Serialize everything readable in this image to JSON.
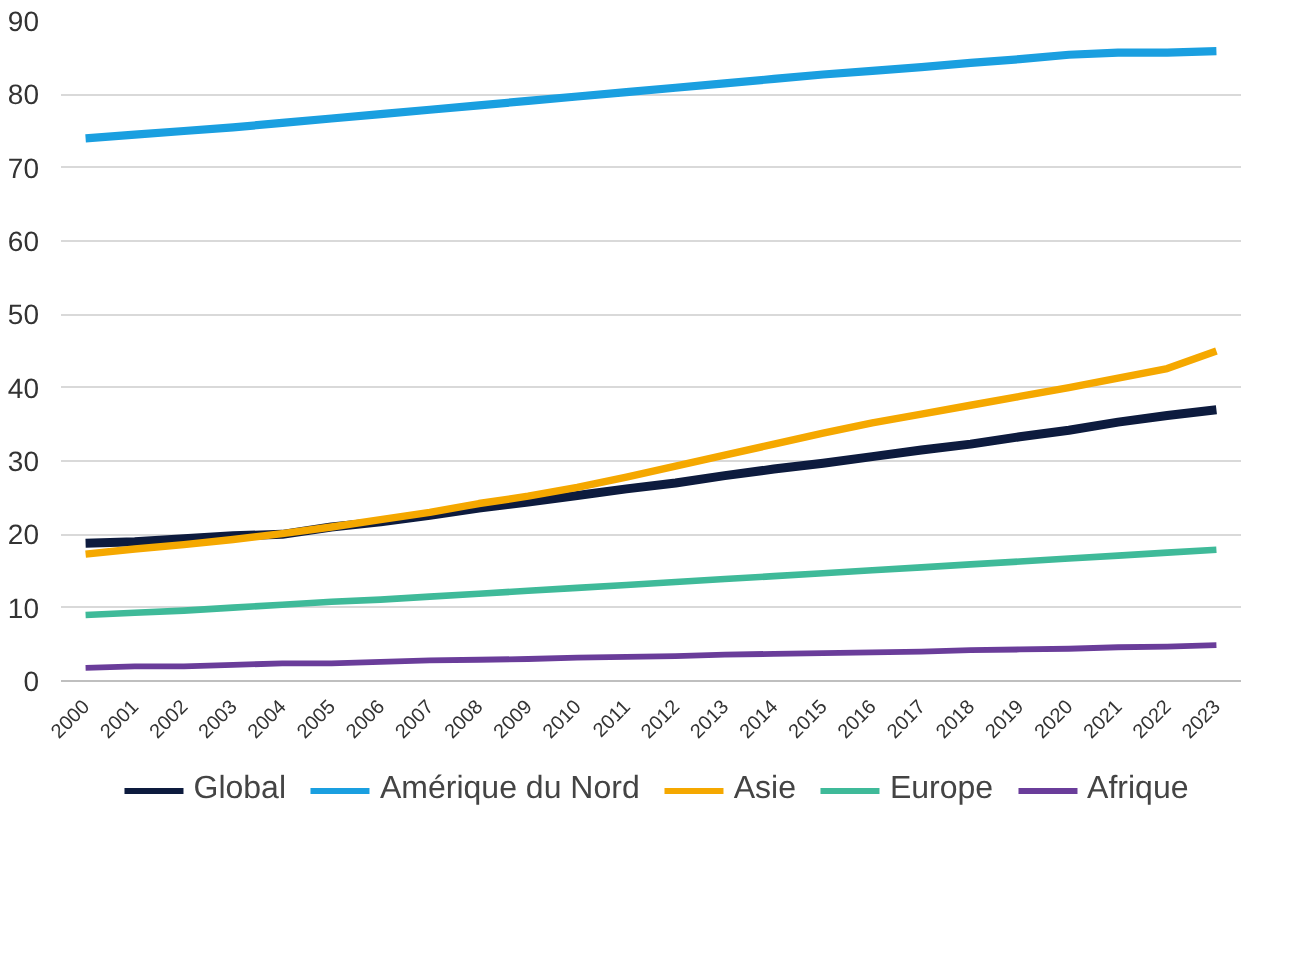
{
  "chart_data": {
    "type": "line",
    "categories": [
      "2000",
      "2001",
      "2002",
      "2003",
      "2004",
      "2005",
      "2006",
      "2007",
      "2008",
      "2009",
      "2010",
      "2011",
      "2012",
      "2013",
      "2014",
      "2015",
      "2016",
      "2017",
      "2018",
      "2019",
      "2020",
      "2021",
      "2022",
      "2023"
    ],
    "series": [
      {
        "name": "Global",
        "color": "#0d1b3e",
        "values": [
          18.8,
          19,
          19.4,
          19.8,
          20,
          21,
          21.7,
          22.6,
          23.6,
          24.4,
          25.3,
          26.2,
          27,
          28,
          28.9,
          29.7,
          30.6,
          31.5,
          32.3,
          33.3,
          34.2,
          35.3,
          36.2,
          37
        ]
      },
      {
        "name": "Amérique du Nord",
        "color": "#1a9fe0",
        "values": [
          74,
          74.5,
          75,
          75.5,
          76.1,
          76.7,
          77.3,
          77.9,
          78.5,
          79.1,
          79.7,
          80.3,
          80.9,
          81.5,
          82.1,
          82.7,
          83.2,
          83.7,
          84.3,
          84.8,
          85.4,
          85.7,
          85.7,
          85.9
        ]
      },
      {
        "name": "Asie",
        "color": "#f5a800",
        "values": [
          17.3,
          18,
          18.6,
          19.3,
          20.1,
          21,
          22,
          23,
          24.2,
          25.2,
          26.4,
          27.8,
          29.3,
          30.8,
          32.3,
          33.8,
          35.2,
          36.4,
          37.6,
          38.8,
          40,
          41.3,
          42.6,
          45
        ]
      },
      {
        "name": "Europe",
        "color": "#3fba99",
        "values": [
          9,
          9.3,
          9.6,
          10,
          10.4,
          10.8,
          11.1,
          11.5,
          11.9,
          12.3,
          12.7,
          13.1,
          13.5,
          13.9,
          14.3,
          14.7,
          15.1,
          15.5,
          15.9,
          16.3,
          16.7,
          17.1,
          17.5,
          17.9
        ]
      },
      {
        "name": "Afrique",
        "color": "#6a3d9a",
        "values": [
          1.8,
          2,
          2,
          2.2,
          2.4,
          2.4,
          2.6,
          2.8,
          2.9,
          3,
          3.2,
          3.3,
          3.4,
          3.6,
          3.7,
          3.8,
          3.9,
          4,
          4.2,
          4.3,
          4.4,
          4.6,
          4.7,
          4.9
        ]
      }
    ],
    "ylim": [
      0,
      90
    ],
    "yticks": [
      0,
      10,
      20,
      30,
      40,
      50,
      60,
      70,
      80,
      90
    ],
    "grid": "y",
    "legend": "bottom",
    "marker": "none",
    "line_style": "solid"
  }
}
